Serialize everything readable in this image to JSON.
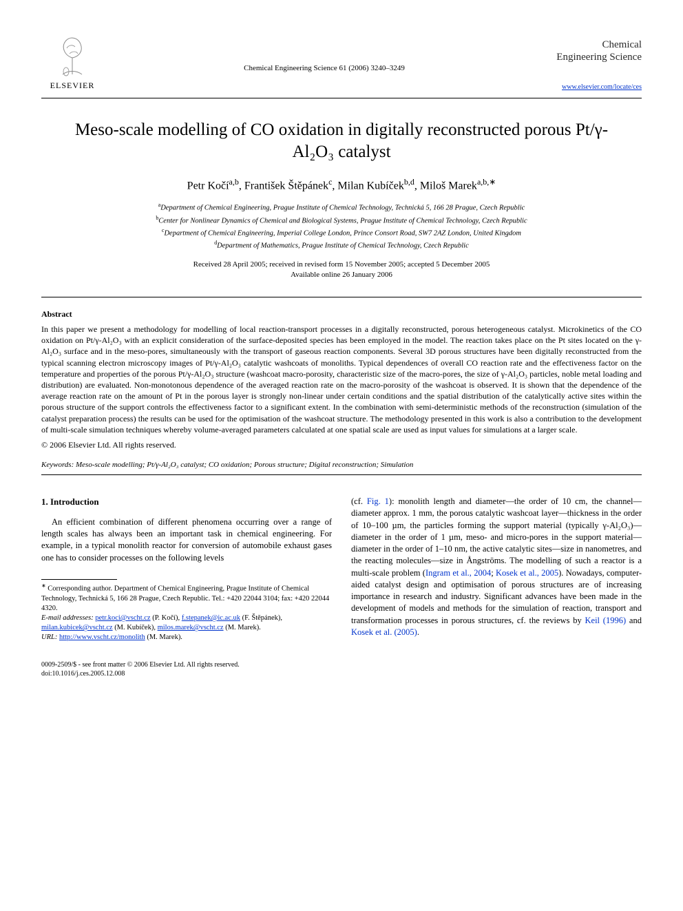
{
  "header": {
    "publisher": "ELSEVIER",
    "journal_ref": "Chemical Engineering Science 61 (2006) 3240–3249",
    "journal_title_line1": "Chemical",
    "journal_title_line2": "Engineering Science",
    "journal_url": "www.elsevier.com/locate/ces"
  },
  "article": {
    "title": "Meso-scale modelling of CO oxidation in digitally reconstructed porous Pt/γ-Al₂O₃ catalyst",
    "authors_html": "Petr Kočí<sup>a,b</sup>, František Štěpánek<sup>c</sup>, Milan Kubíček<sup>b,d</sup>, Miloš Marek<sup>a,b,∗</sup>",
    "affiliations": [
      "<sup>a</sup>Department of Chemical Engineering, Prague Institute of Chemical Technology, Technická 5, 166 28 Prague, Czech Republic",
      "<sup>b</sup>Center for Nonlinear Dynamics of Chemical and Biological Systems, Prague Institute of Chemical Technology, Czech Republic",
      "<sup>c</sup>Department of Chemical Engineering, Imperial College London, Prince Consort Road, SW7 2AZ London, United Kingdom",
      "<sup>d</sup>Department of Mathematics, Prague Institute of Chemical Technology, Czech Republic"
    ],
    "dates_line1": "Received 28 April 2005; received in revised form 15 November 2005; accepted 5 December 2005",
    "dates_line2": "Available online 26 January 2006"
  },
  "abstract": {
    "heading": "Abstract",
    "body": "In this paper we present a methodology for modelling of local reaction-transport processes in a digitally reconstructed, porous heterogeneous catalyst. Microkinetics of the CO oxidation on Pt/γ-Al₂O₃ with an explicit consideration of the surface-deposited species has been employed in the model. The reaction takes place on the Pt sites located on the γ-Al₂O₃ surface and in the meso-pores, simultaneously with the transport of gaseous reaction components. Several 3D porous structures have been digitally reconstructed from the typical scanning electron microscopy images of Pt/γ-Al₂O₃ catalytic washcoats of monoliths. Typical dependences of overall CO reaction rate and the effectiveness factor on the temperature and properties of the porous Pt/γ-Al₂O₃ structure (washcoat macro-porosity, characteristic size of the macro-pores, the size of γ-Al₂O₃ particles, noble metal loading and distribution) are evaluated. Non-monotonous dependence of the averaged reaction rate on the macro-porosity of the washcoat is observed. It is shown that the dependence of the average reaction rate on the amount of Pt in the porous layer is strongly non-linear under certain conditions and the spatial distribution of the catalytically active sites within the porous structure of the support controls the effectiveness factor to a significant extent. In the combination with semi-deterministic methods of the reconstruction (simulation of the catalyst preparation process) the results can be used for the optimisation of the washcoat structure. The methodology presented in this work is also a contribution to the development of multi-scale simulation techniques whereby volume-averaged parameters calculated at one spatial scale are used as input values for simulations at a larger scale.",
    "copyright": "© 2006 Elsevier Ltd. All rights reserved."
  },
  "keywords": {
    "label": "Keywords:",
    "text": "Meso-scale modelling; Pt/γ-Al₂O₃ catalyst; CO oxidation; Porous structure; Digital reconstruction; Simulation"
  },
  "body": {
    "section_heading": "1. Introduction",
    "left_para": "An efficient combination of different phenomena occurring over a range of length scales has always been an important task in chemical engineering. For example, in a typical monolith reactor for conversion of automobile exhaust gases one has to consider processes on the following levels",
    "right_para_pre": "(cf. ",
    "fig_ref": "Fig. 1",
    "right_para_mid": "): monolith length and diameter—the order of 10 cm, the channel—diameter approx. 1 mm, the porous catalytic washcoat layer—thickness in the order of 10–100 µm, the particles forming the support material (typically γ-Al₂O₃)—diameter in the order of 1 µm, meso- and micro-pores in the support material—diameter in the order of 1–10 nm, the active catalytic sites—size in nanometres, and the reacting molecules—size in Ångströms. The modelling of such a reactor is a multi-scale problem (",
    "cite1": "Ingram et al., 2004",
    "cite_sep": "; ",
    "cite2": "Kosek et al., 2005",
    "right_para_post1": "). Nowadays, computer-aided catalyst design and optimisation of porous structures are of increasing importance in research and industry. Significant advances have been made in the development of models and methods for the simulation of reaction, transport and transformation processes in porous structures, cf. the reviews by ",
    "cite3": "Keil (1996)",
    "and_word": " and ",
    "cite4": "Kosek et al. (2005)",
    "right_para_end": "."
  },
  "footnotes": {
    "corr_label": "∗",
    "corr_text": " Corresponding author. Department of Chemical Engineering, Prague Institute of Chemical Technology, Technická 5, 166 28 Prague, Czech Republic. Tel.: +420 22044 3104; fax: +420 22044 4320.",
    "email_label": "E-mail addresses:",
    "email1": "petr.koci@vscht.cz",
    "email1_who": " (P. Kočí), ",
    "email2": "f.stepanek@ic.ac.uk",
    "email2_who": " (F. Štěpánek), ",
    "email3": "milan.kubicek@vscht.cz",
    "email3_who": " (M. Kubíček), ",
    "email4": "milos.marek@vscht.cz",
    "email4_who": " (M. Marek).",
    "url_label": "URL:",
    "url": "http://www.vscht.cz/monolith",
    "url_who": " (M. Marek)."
  },
  "bottom": {
    "line1": "0009-2509/$ - see front matter © 2006 Elsevier Ltd. All rights reserved.",
    "line2": "doi:10.1016/j.ces.2005.12.008"
  },
  "colors": {
    "link": "#0033cc",
    "text": "#000000",
    "bg": "#ffffff",
    "logo_orange": "#e87722",
    "logo_grey": "#8a8a8a"
  },
  "typography": {
    "body_font": "Times New Roman",
    "title_fontsize_pt": 19,
    "authors_fontsize_pt": 12,
    "body_fontsize_pt": 9.5,
    "abstract_fontsize_pt": 9,
    "footnote_fontsize_pt": 8
  }
}
